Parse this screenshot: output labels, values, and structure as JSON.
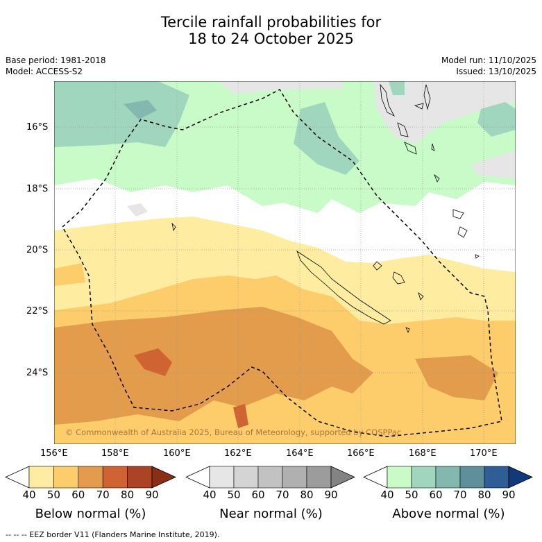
{
  "title_line1": "Tercile rainfall probabilities for",
  "title_line2": "18 to 24 October 2025",
  "base_period": "Base period: 1981-2018",
  "model": "Model: ACCESS-S2",
  "model_run": "Model run: 11/10/2025",
  "issued": "Issued: 13/10/2025",
  "copyright": "© Commonwealth of Australia 2025, Bureau of Meteorology, supported by COSPPac",
  "lat_labels": [
    "16°S",
    "18°S",
    "20°S",
    "22°S",
    "24°S"
  ],
  "lon_labels": [
    "156°E",
    "158°E",
    "160°E",
    "162°E",
    "164°E",
    "166°E",
    "168°E",
    "170°E"
  ],
  "colorbars": [
    {
      "title": "Below normal (%)",
      "ticks": [
        "40",
        "50",
        "60",
        "70",
        "80",
        "90"
      ],
      "colors": [
        "#ffffff",
        "#feeda0",
        "#fdcd6b",
        "#e29c4c",
        "#cf6331",
        "#ab4325",
        "#8a2e18"
      ]
    },
    {
      "title": "Near normal (%)",
      "ticks": [
        "40",
        "50",
        "60",
        "70",
        "80",
        "90"
      ],
      "colors": [
        "#ffffff",
        "#e6e6e6",
        "#d4d4d4",
        "#c2c2c2",
        "#b0b0b0",
        "#9c9c9c",
        "#838383"
      ]
    },
    {
      "title": "Above normal (%)",
      "ticks": [
        "40",
        "50",
        "60",
        "70",
        "80",
        "90"
      ],
      "colors": [
        "#ffffff",
        "#c8fbc8",
        "#a0d6be",
        "#82b8af",
        "#5e8f9b",
        "#2f5e96",
        "#133a78"
      ]
    }
  ],
  "footnote": "-- -- -- EEZ border V11 (Flanders Marine Institute, 2019).",
  "legend_colors": {
    "below_50": "#feeda0",
    "below_60": "#fdcd6b",
    "below_70": "#e29c4c",
    "below_80": "#cf6331",
    "near_50": "#e6e6e6",
    "above_50": "#c8fbc8",
    "above_60": "#a0d6be",
    "above_70": "#82b8af"
  }
}
